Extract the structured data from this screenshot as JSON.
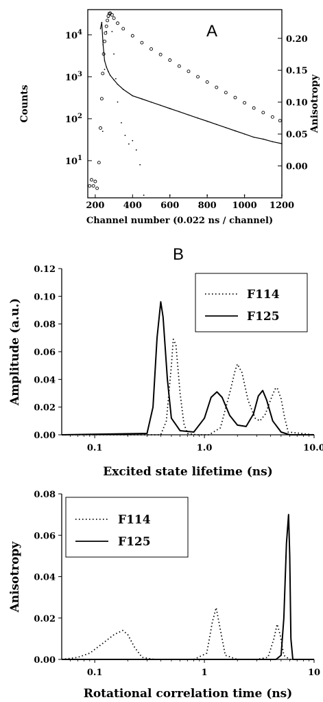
{
  "chart_data": [
    {
      "panel_label": "A",
      "type": "scatter",
      "xlabel": "Channel  number (0.022 ns / channel)",
      "ylabel_left": "Counts",
      "ylabel_right": "Anisotropy",
      "xlim": [
        160,
        1200
      ],
      "ylim_left": [
        1.3,
        40000
      ],
      "yscale_left": "log",
      "ylim_right": [
        -0.05,
        0.245
      ],
      "x_ticks": [
        "200",
        "400",
        "600",
        "800",
        "1000",
        "1200"
      ],
      "y_ticks_left": [
        "10^1",
        "10^2",
        "10^3",
        "10^4"
      ],
      "y_ticks_right": [
        "0.00",
        "0.05",
        "0.10",
        "0.15",
        "0.20"
      ],
      "series": [
        {
          "style": "circles",
          "axis": "left",
          "x": [
            170,
            180,
            190,
            200,
            210,
            220,
            228,
            235,
            240,
            245,
            250,
            255,
            260,
            265,
            270,
            275,
            280,
            290,
            300,
            320,
            350,
            400,
            450,
            500,
            550,
            600,
            650,
            700,
            750,
            800,
            850,
            900,
            950,
            1000,
            1050,
            1100,
            1150,
            1190
          ],
          "y": [
            2.5,
            3.5,
            2.5,
            3.2,
            2.2,
            9,
            60,
            300,
            1200,
            3500,
            7000,
            11000,
            16000,
            22000,
            28000,
            32000,
            33000,
            30000,
            25000,
            19000,
            14000,
            9500,
            6500,
            4600,
            3400,
            2500,
            1800,
            1350,
            1000,
            750,
            560,
            420,
            320,
            240,
            180,
            140,
            110,
            90
          ]
        },
        {
          "style": "dots",
          "axis": "left",
          "x": [
            240,
            250,
            260,
            270,
            280,
            290,
            300,
            310,
            320,
            340,
            360,
            380,
            400,
            420,
            440,
            460,
            600,
            800,
            1000,
            1200
          ],
          "y": [
            50,
            1500,
            12000,
            26000,
            30000,
            12000,
            3500,
            900,
            250,
            80,
            40,
            25,
            30,
            18,
            8,
            1.5,
            1.5,
            1.5,
            1.5,
            1.5
          ]
        },
        {
          "style": "line",
          "axis": "right",
          "x": [
            228,
            235,
            242,
            250,
            260,
            270,
            280,
            300,
            320,
            350,
            400,
            450,
            500,
            550,
            600,
            650,
            700,
            750,
            800,
            850,
            900,
            950,
            1000,
            1050,
            1100,
            1150,
            1200
          ],
          "y": [
            0.215,
            0.225,
            0.19,
            0.165,
            0.155,
            0.148,
            0.142,
            0.135,
            0.128,
            0.12,
            0.11,
            0.105,
            0.1,
            0.095,
            0.09,
            0.085,
            0.08,
            0.075,
            0.07,
            0.065,
            0.06,
            0.055,
            0.05,
            0.045,
            0.042,
            0.038,
            0.035
          ]
        }
      ]
    },
    {
      "panel_label": "B",
      "type": "line",
      "xlabel": "Excited state lifetime (ns)",
      "ylabel": "Amplitude (a.u.)",
      "xscale": "log",
      "xlim": [
        0.05,
        10
      ],
      "ylim": [
        0,
        0.12
      ],
      "x_ticks": [
        "0.1",
        "1.0",
        "10.0"
      ],
      "y_ticks": [
        "0.00",
        "0.02",
        "0.04",
        "0.06",
        "0.08",
        "0.10",
        "0.12"
      ],
      "legend": {
        "position": "top-right",
        "entries": [
          {
            "label": "F114",
            "style": "dotted"
          },
          {
            "label": "F125",
            "style": "solid"
          }
        ]
      },
      "series": [
        {
          "name": "F114",
          "style": "dotted",
          "x": [
            0.05,
            0.4,
            0.45,
            0.5,
            0.52,
            0.55,
            0.6,
            0.65,
            0.7,
            0.85,
            1.1,
            1.4,
            1.7,
            1.9,
            2.0,
            2.2,
            2.5,
            2.9,
            3.2,
            3.6,
            4.0,
            4.4,
            4.6,
            5.0,
            5.4,
            5.8,
            10
          ],
          "y": [
            0,
            0,
            0.01,
            0.05,
            0.069,
            0.065,
            0.03,
            0.008,
            0.001,
            0,
            0,
            0.005,
            0.03,
            0.046,
            0.051,
            0.045,
            0.025,
            0.012,
            0.01,
            0.015,
            0.025,
            0.033,
            0.034,
            0.026,
            0.012,
            0.002,
            0
          ]
        },
        {
          "name": "F125",
          "style": "solid",
          "x": [
            0.05,
            0.3,
            0.34,
            0.37,
            0.4,
            0.42,
            0.46,
            0.5,
            0.6,
            0.8,
            1.0,
            1.15,
            1.3,
            1.45,
            1.7,
            2.0,
            2.4,
            2.8,
            3.1,
            3.4,
            3.7,
            4.2,
            5.0,
            6.0,
            10
          ],
          "y": [
            0,
            0.001,
            0.02,
            0.07,
            0.096,
            0.085,
            0.04,
            0.012,
            0.003,
            0.002,
            0.012,
            0.027,
            0.031,
            0.027,
            0.014,
            0.007,
            0.006,
            0.015,
            0.028,
            0.032,
            0.025,
            0.01,
            0.002,
            0,
            0
          ]
        }
      ]
    },
    {
      "type": "line",
      "xlabel": "Rotational correlation time (ns)",
      "ylabel": "Anisotropy",
      "xscale": "log",
      "xlim": [
        0.05,
        10
      ],
      "ylim": [
        0,
        0.08
      ],
      "x_ticks": [
        "0.1",
        "1",
        "10"
      ],
      "y_ticks": [
        "0.00",
        "0.02",
        "0.04",
        "0.06",
        "0.08"
      ],
      "legend": {
        "position": "top-left",
        "entries": [
          {
            "label": "F114",
            "style": "dotted"
          },
          {
            "label": "F125",
            "style": "solid"
          }
        ]
      },
      "series": [
        {
          "name": "F114",
          "style": "dotted",
          "x": [
            0.05,
            0.07,
            0.09,
            0.12,
            0.15,
            0.18,
            0.2,
            0.23,
            0.27,
            0.35,
            0.5,
            0.8,
            1.05,
            1.18,
            1.28,
            1.38,
            1.55,
            2.0,
            3.0,
            3.8,
            4.3,
            4.6,
            4.9,
            5.3,
            6.0,
            10
          ],
          "y": [
            0,
            0.001,
            0.003,
            0.008,
            0.012,
            0.014,
            0.012,
            0.006,
            0.001,
            0,
            0,
            0,
            0.003,
            0.018,
            0.025,
            0.016,
            0.002,
            0,
            0,
            0.001,
            0.01,
            0.017,
            0.012,
            0.002,
            0,
            0
          ]
        },
        {
          "name": "F125",
          "style": "solid",
          "x": [
            0.05,
            4.5,
            5.0,
            5.3,
            5.6,
            5.85,
            6.0,
            6.15,
            6.4,
            10
          ],
          "y": [
            0,
            0,
            0.002,
            0.02,
            0.056,
            0.07,
            0.05,
            0.01,
            0,
            0
          ]
        }
      ]
    }
  ]
}
